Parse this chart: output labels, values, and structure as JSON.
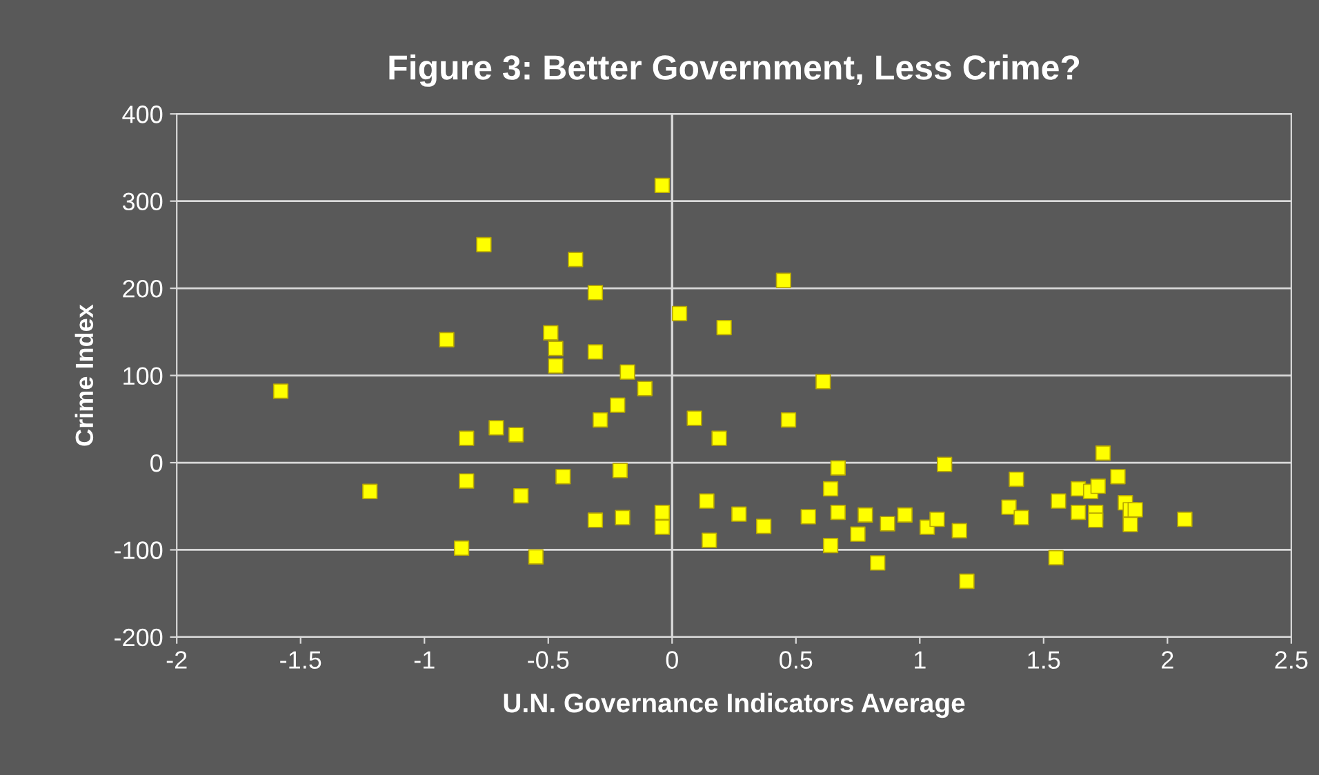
{
  "chart_data": {
    "type": "scatter",
    "title": "Figure 3: Better Government, Less Crime?",
    "xlabel": "U.N. Governance Indicators Average",
    "ylabel": "Crime Index",
    "x": [
      -1.58,
      -1.22,
      -0.91,
      -0.76,
      -0.83,
      -0.83,
      -0.85,
      -0.71,
      -0.63,
      -0.61,
      -0.55,
      -0.49,
      -0.47,
      -0.47,
      -0.44,
      -0.39,
      -0.31,
      -0.31,
      -0.29,
      -0.31,
      -0.22,
      -0.21,
      -0.2,
      -0.18,
      -0.11,
      -0.04,
      -0.04,
      -0.04,
      0.03,
      0.09,
      0.14,
      0.15,
      0.19,
      0.21,
      0.27,
      0.37,
      0.45,
      0.47,
      0.55,
      0.61,
      0.64,
      0.64,
      0.67,
      0.67,
      0.78,
      0.75,
      0.83,
      0.87,
      0.94,
      1.03,
      1.07,
      1.1,
      1.16,
      1.19,
      1.36,
      1.39,
      1.41,
      1.56,
      1.55,
      1.64,
      1.64,
      1.69,
      1.72,
      1.71,
      1.71,
      1.74,
      1.8,
      1.83,
      1.85,
      1.87,
      1.85,
      2.07
    ],
    "values": [
      82,
      -33,
      141,
      250,
      28,
      -21,
      -98,
      40,
      32,
      -38,
      -108,
      149,
      131,
      111,
      -16,
      233,
      195,
      127,
      49,
      -66,
      66,
      -9,
      -63,
      104,
      85,
      318,
      -57,
      -74,
      171,
      51,
      -44,
      -89,
      28,
      155,
      -59,
      -73,
      209,
      49,
      -62,
      93,
      -30,
      -95,
      -6,
      -57,
      -60,
      -82,
      -115,
      -70,
      -60,
      -74,
      -65,
      -2,
      -78,
      -136,
      -51,
      -19,
      -63,
      -44,
      -109,
      -30,
      -57,
      -33,
      -27,
      -57,
      -66,
      11,
      -16,
      -46,
      -54,
      -54,
      -71,
      -65
    ],
    "color": "#ffff00",
    "marker": "square",
    "xlim": [
      -2,
      2.5
    ],
    "xticks": [
      -2,
      -1.5,
      -1,
      -0.5,
      0,
      0.5,
      1,
      1.5,
      2,
      2.5
    ],
    "ylim": [
      -200,
      400
    ],
    "yticks": [
      -200,
      -100,
      0,
      100,
      200,
      300,
      400
    ],
    "grid": "y",
    "ref_lines": [
      {
        "axis": "x",
        "value": 0,
        "label": null
      }
    ]
  }
}
